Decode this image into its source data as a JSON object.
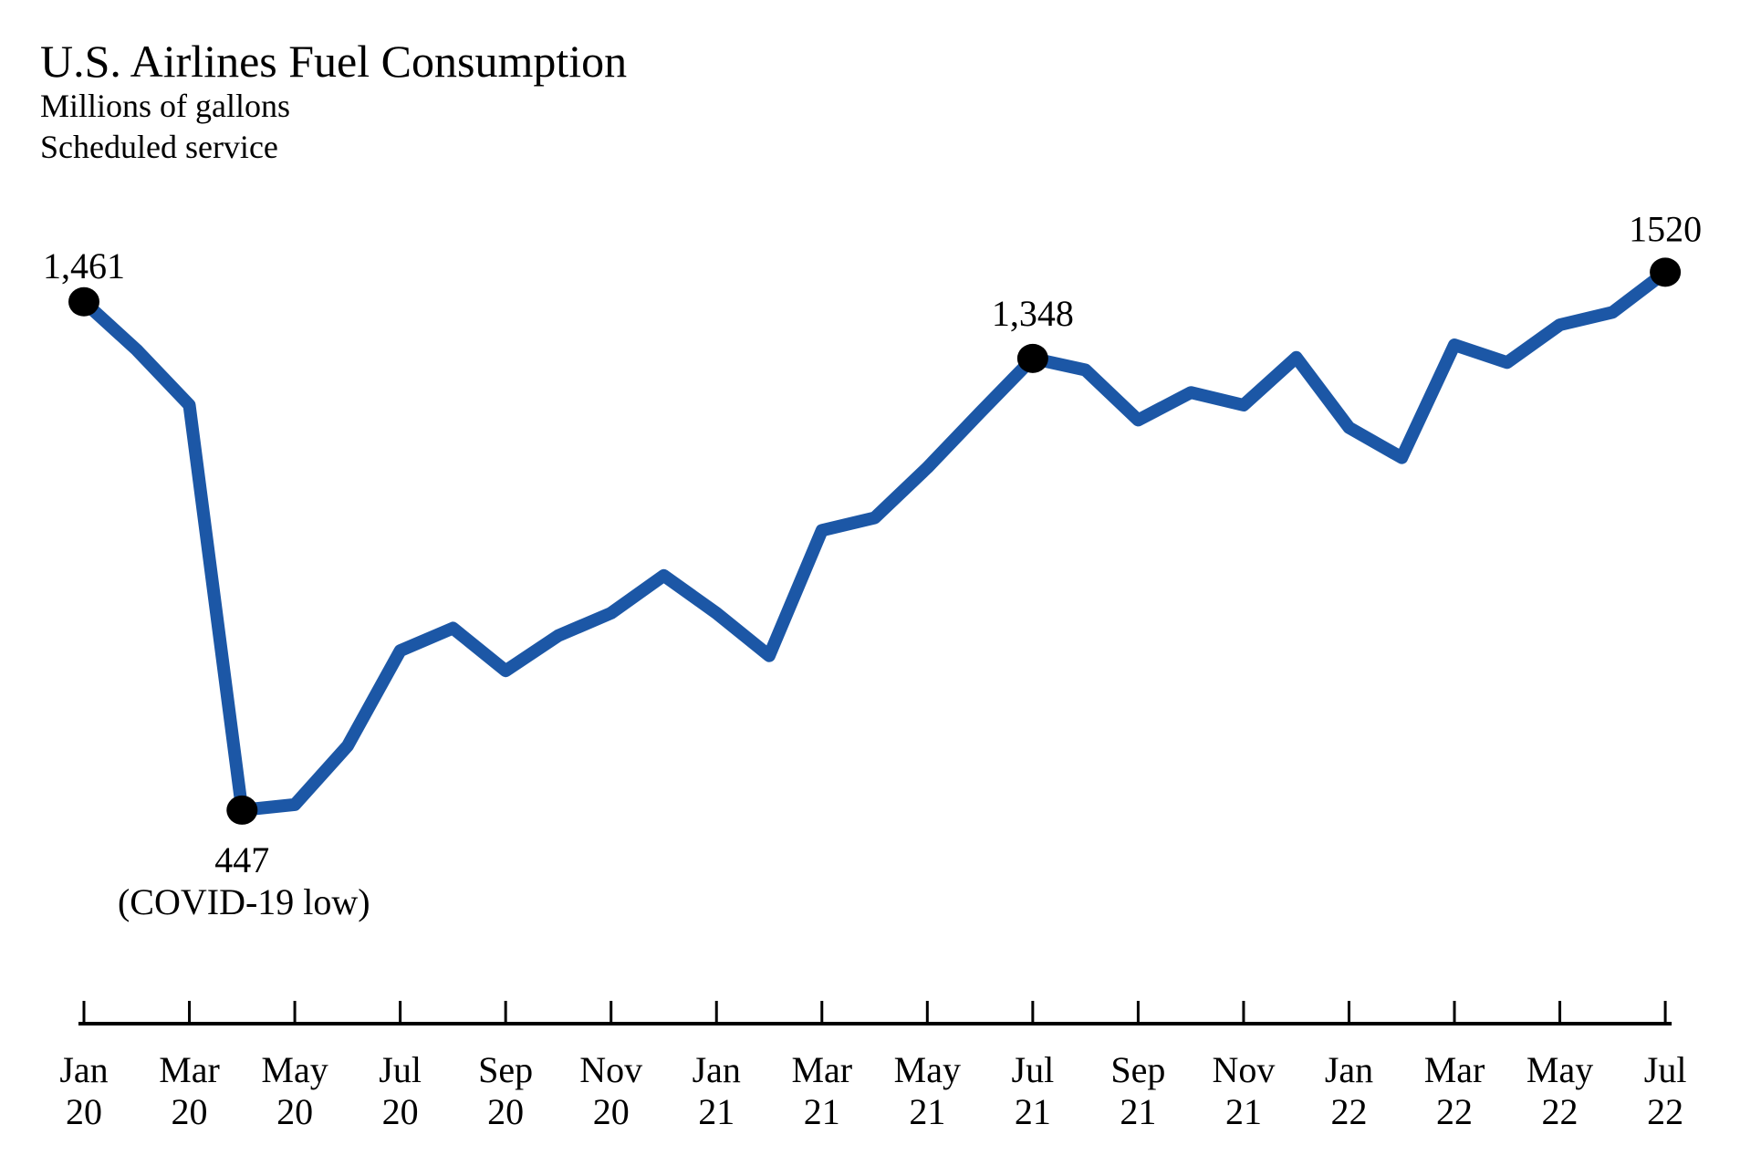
{
  "title": "U.S. Airlines Fuel Consumption",
  "subtitle_units": "Millions of gallons",
  "subtitle_service": "Scheduled service",
  "chart_data": {
    "type": "line",
    "title": "U.S. Airlines Fuel Consumption",
    "ylabel": "Millions of gallons",
    "note": "Scheduled service",
    "series_name": "Fuel consumption (millions of gallons)",
    "x": [
      "Jan 2020",
      "Feb 2020",
      "Mar 2020",
      "Apr 2020",
      "May 2020",
      "Jun 2020",
      "Jul 2020",
      "Aug 2020",
      "Sep 2020",
      "Oct 2020",
      "Nov 2020",
      "Dec 2020",
      "Jan 2021",
      "Feb 2021",
      "Mar 2021",
      "Apr 2021",
      "May 2021",
      "Jun 2021",
      "Jul 2021",
      "Aug 2021",
      "Sep 2021",
      "Oct 2021",
      "Nov 2021",
      "Dec 2021",
      "Jan 2022",
      "Feb 2022",
      "Mar 2022",
      "Apr 2022",
      "May 2022",
      "Jun 2022",
      "Jul 2022"
    ],
    "values": [
      1461,
      1365,
      1255,
      447,
      458,
      575,
      765,
      810,
      725,
      795,
      840,
      915,
      840,
      755,
      1005,
      1030,
      1130,
      1240,
      1348,
      1325,
      1225,
      1280,
      1255,
      1350,
      1210,
      1150,
      1375,
      1340,
      1415,
      1440,
      1520
    ],
    "ylim": [
      380,
      1560
    ],
    "grid": false,
    "legend": "none",
    "line_color": "#1c57a6",
    "marker_color": "#000000",
    "axis_color": "#000000",
    "x_tick_labels": [
      {
        "month": "Jan",
        "year": "20"
      },
      {
        "month": "Mar",
        "year": "20"
      },
      {
        "month": "May",
        "year": "20"
      },
      {
        "month": "Jul",
        "year": "20"
      },
      {
        "month": "Sep",
        "year": "20"
      },
      {
        "month": "Nov",
        "year": "20"
      },
      {
        "month": "Jan",
        "year": "21"
      },
      {
        "month": "Mar",
        "year": "21"
      },
      {
        "month": "May",
        "year": "21"
      },
      {
        "month": "Jul",
        "year": "21"
      },
      {
        "month": "Sep",
        "year": "21"
      },
      {
        "month": "Nov",
        "year": "21"
      },
      {
        "month": "Jan",
        "year": "22"
      },
      {
        "month": "Mar",
        "year": "22"
      },
      {
        "month": "May",
        "year": "22"
      },
      {
        "month": "Jul",
        "year": "22"
      }
    ],
    "annotations": [
      {
        "index": 0,
        "label": "1,461",
        "position": "above"
      },
      {
        "index": 3,
        "label": "447",
        "sublabel": "(COVID-19 low)",
        "position": "below"
      },
      {
        "index": 18,
        "label": "1,348",
        "position": "above"
      },
      {
        "index": 30,
        "label": "1520",
        "position": "above"
      }
    ]
  }
}
